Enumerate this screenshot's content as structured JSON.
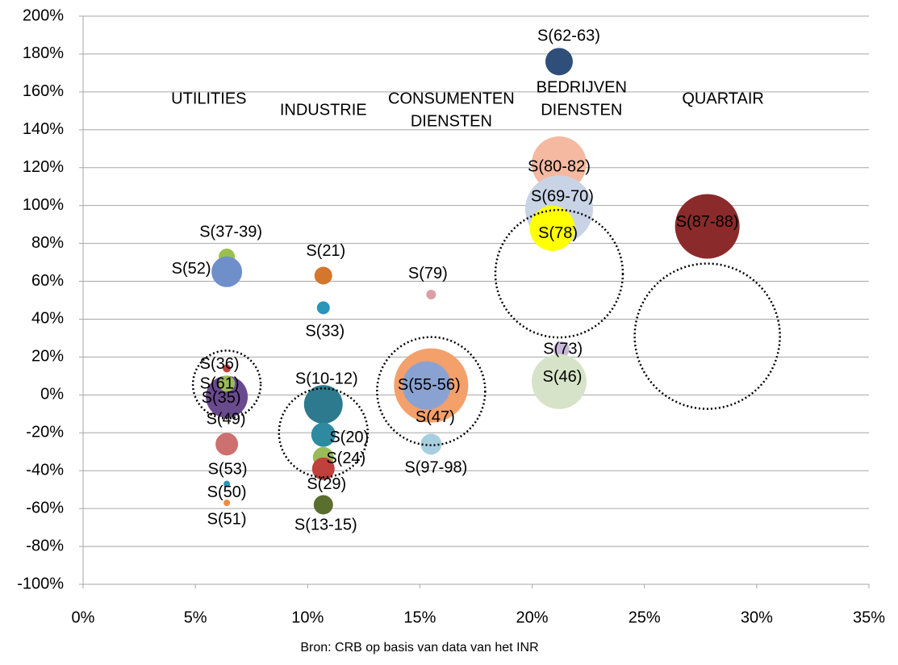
{
  "chart_data": {
    "type": "bubble",
    "source": "Bron: CRB op basis van data van het INR",
    "xlim": [
      0,
      35
    ],
    "xticks": [
      {
        "value": 0,
        "label": "0%"
      },
      {
        "value": 5,
        "label": "5%"
      },
      {
        "value": 10,
        "label": "10%"
      },
      {
        "value": 15,
        "label": "15%"
      },
      {
        "value": 20,
        "label": "20%"
      },
      {
        "value": 25,
        "label": "25%"
      },
      {
        "value": 30,
        "label": "30%"
      },
      {
        "value": 35,
        "label": "35%"
      }
    ],
    "ylim": [
      -100,
      200
    ],
    "yticks": [
      {
        "value": -100,
        "label": "-100%"
      },
      {
        "value": -80,
        "label": "-80%"
      },
      {
        "value": -60,
        "label": "-60%"
      },
      {
        "value": -40,
        "label": "-40%"
      },
      {
        "value": -20,
        "label": "-20%"
      },
      {
        "value": 0,
        "label": "0%"
      },
      {
        "value": 20,
        "label": "20%"
      },
      {
        "value": 40,
        "label": "40%"
      },
      {
        "value": 60,
        "label": "60%"
      },
      {
        "value": 80,
        "label": "80%"
      },
      {
        "value": 100,
        "label": "100%"
      },
      {
        "value": 120,
        "label": "120%"
      },
      {
        "value": 140,
        "label": "140%"
      },
      {
        "value": 160,
        "label": "160%"
      },
      {
        "value": 180,
        "label": "180%"
      },
      {
        "value": 200,
        "label": "200%"
      }
    ],
    "grid": true,
    "sectors": [
      {
        "lines": [
          "UTILITIES"
        ],
        "x": 5.6,
        "y": 156
      },
      {
        "lines": [
          "INDUSTRIE"
        ],
        "x": 10.7,
        "y": 150
      },
      {
        "lines": [
          "CONSUMENTEN",
          "DIENSTEN"
        ],
        "x": 16.4,
        "y": 150
      },
      {
        "lines": [
          "BEDRIJVEN",
          "DIENSTEN"
        ],
        "x": 22.2,
        "y": 156
      },
      {
        "lines": [
          "QUARTAIR"
        ],
        "x": 28.5,
        "y": 156
      }
    ],
    "labels": [
      "S(62-63)",
      "S(80-82)",
      "S(69-70)",
      "S(78)",
      "S(87-88)",
      "S(73)",
      "S(46)",
      "S(37-39)",
      "S(52)",
      "S(21)",
      "S(33)",
      "S(79)",
      "S(47)",
      "S(55-56)",
      "S(97-98)",
      "S(10-12)",
      "S(20)",
      "S(24)",
      "S(29)",
      "S(13-15)",
      "S(49)",
      "S(35)",
      "S(61)",
      "S(36)",
      "S(53)",
      "S(50)",
      "S(51)"
    ],
    "x": [
      21.2,
      21.2,
      21.2,
      20.9,
      27.8,
      21.3,
      21.2,
      6.4,
      6.4,
      10.7,
      10.7,
      15.5,
      15.5,
      15.3,
      15.5,
      10.7,
      10.7,
      10.7,
      10.7,
      10.7,
      6.4,
      6.4,
      6.4,
      6.4,
      6.4,
      6.4,
      6.4
    ],
    "values": [
      176,
      122,
      98,
      88,
      89,
      24,
      7,
      73,
      65,
      63,
      46,
      53,
      5,
      5,
      -26,
      -5,
      -21,
      -33,
      -39,
      -58,
      -3,
      -1,
      6,
      14,
      -26,
      -47,
      -57
    ],
    "sizes": [
      17,
      34,
      42,
      28,
      40,
      10,
      34,
      10,
      19,
      11,
      8,
      6,
      46,
      30,
      13,
      24,
      15,
      13,
      14,
      12,
      20,
      26,
      10,
      5,
      14,
      4,
      4
    ],
    "colors": [
      "#2f4f7a",
      "#f4b9a0",
      "#c9d3e6",
      "#ffff00",
      "#8b2a2a",
      "#c8b8d8",
      "#d6e3c8",
      "#99c04d",
      "#6f8fcb",
      "#d4772e",
      "#2996b8",
      "#d8a0a5",
      "#f4a06a",
      "#8aa2d2",
      "#a8cfe0",
      "#2d7a8e",
      "#2e8aa0",
      "#9bbb59",
      "#c0403c",
      "#5a6e2e",
      "#7f6aa8",
      "#6a4a8e",
      "#9bbb59",
      "#c0403c",
      "#cd7070",
      "#2996b8",
      "#f08a3a"
    ],
    "groups": {
      "x": [
        6.4,
        10.7,
        15.5,
        21.2,
        27.8
      ],
      "values": [
        5.5,
        -20,
        2,
        64,
        31
      ],
      "sizes": [
        42,
        55,
        67,
        79,
        90
      ]
    }
  }
}
